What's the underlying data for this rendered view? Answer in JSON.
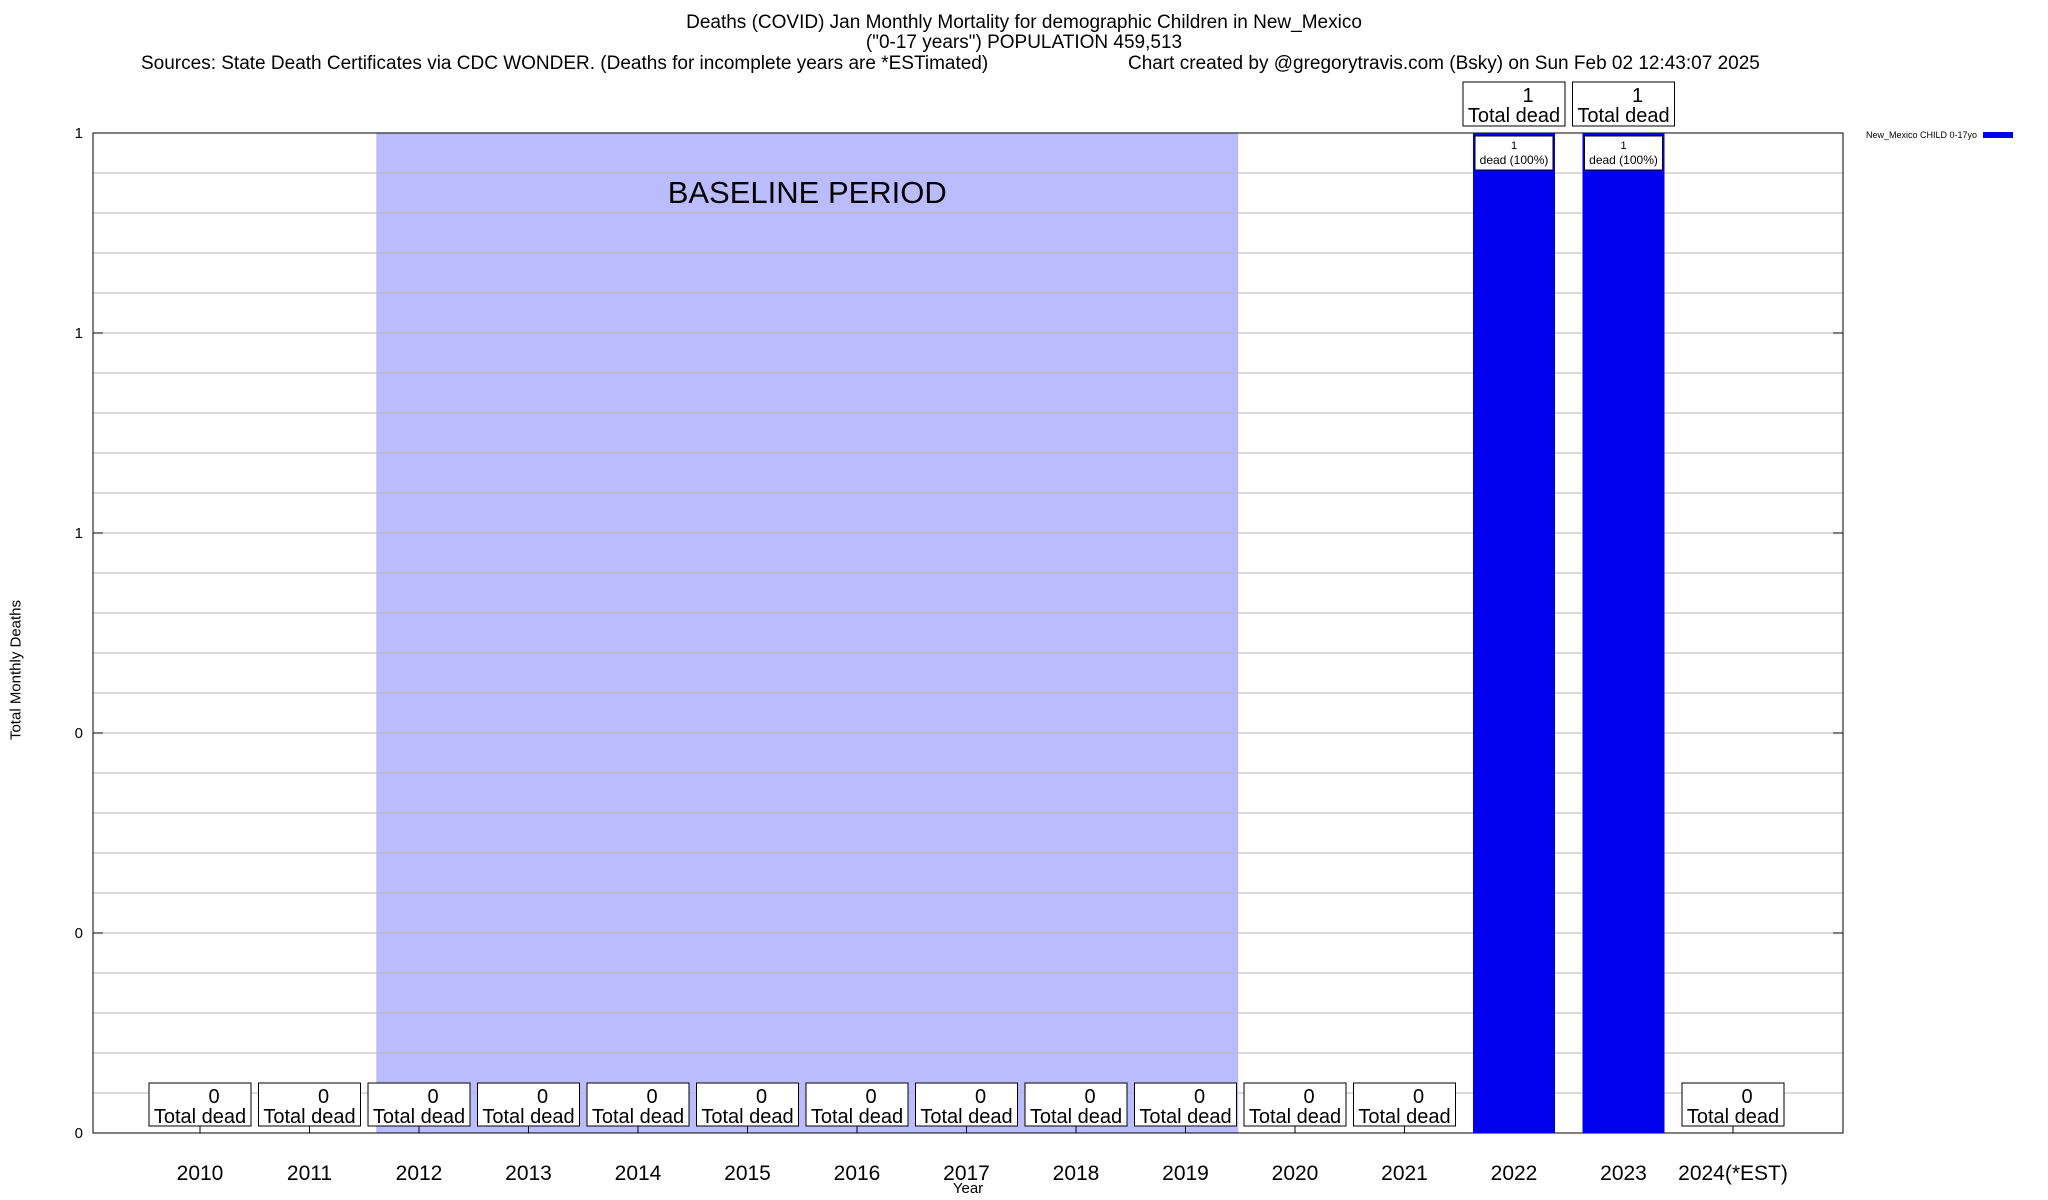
{
  "chart_data": {
    "type": "bar",
    "title": "Deaths (COVID) Jan Monthly Mortality for demographic Children in New_Mexico",
    "subtitle": "(\"0-17 years\") POPULATION 459,513",
    "sources": "Sources: State Death Certificates via CDC WONDER. (Deaths for incomplete years are *ESTimated)",
    "credit": "Chart created by @gregorytravis.com (Bsky) on Sun Feb 02 12:43:07 2025",
    "xlabel": "Year",
    "ylabel": "Total Monthly Deaths",
    "categories": [
      "2010",
      "2011",
      "2012",
      "2013",
      "2014",
      "2015",
      "2016",
      "2017",
      "2018",
      "2019",
      "2020",
      "2021",
      "2022",
      "2023",
      "2024(*EST)"
    ],
    "series": [
      {
        "name": "New_Mexico CHILD 0-17yo",
        "color": "#0000ee",
        "values": [
          0,
          0,
          0,
          0,
          0,
          0,
          0,
          0,
          0,
          0,
          0,
          0,
          1,
          1,
          0
        ]
      }
    ],
    "ylim": [
      0,
      1
    ],
    "yticks": [
      {
        "value": 0,
        "label": "0"
      },
      {
        "value": 0.2,
        "label": "0"
      },
      {
        "value": 0.4,
        "label": "0"
      },
      {
        "value": 0.6,
        "label": "1"
      },
      {
        "value": 0.8,
        "label": "1"
      },
      {
        "value": 1.0,
        "label": "1"
      }
    ],
    "total_label": "Total dead",
    "inner_label_suffix": "dead (100%)",
    "baseline": {
      "label": "BASELINE PERIOD",
      "from": "2012",
      "to": "2019",
      "color": "#bbbbff"
    },
    "grid": true,
    "legend_position": "top-right"
  }
}
